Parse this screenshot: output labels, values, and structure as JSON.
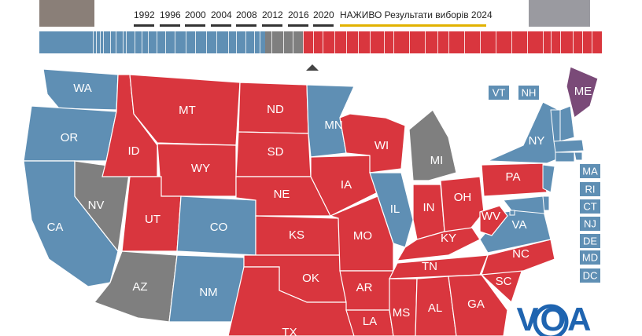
{
  "header": {
    "years": [
      "1992",
      "1996",
      "2000",
      "2004",
      "2008",
      "2012",
      "2016",
      "2020"
    ],
    "live": "НАЖИВО Результати виборів 2024"
  },
  "colors": {
    "dem": "#5f8fb4",
    "rep": "#d9363e",
    "none": "#7f7f7f",
    "split": "#7a4a78"
  },
  "states": [
    {
      "label": "WA",
      "party": "dem"
    },
    {
      "label": "OR",
      "party": "dem"
    },
    {
      "label": "CA",
      "party": "dem"
    },
    {
      "label": "NV",
      "party": "none"
    },
    {
      "label": "ID",
      "party": "rep"
    },
    {
      "label": "MT",
      "party": "rep"
    },
    {
      "label": "WY",
      "party": "rep"
    },
    {
      "label": "UT",
      "party": "rep"
    },
    {
      "label": "CO",
      "party": "dem"
    },
    {
      "label": "AZ",
      "party": "none"
    },
    {
      "label": "NM",
      "party": "dem"
    },
    {
      "label": "ND",
      "party": "rep"
    },
    {
      "label": "SD",
      "party": "rep"
    },
    {
      "label": "NE",
      "party": "rep"
    },
    {
      "label": "KS",
      "party": "rep"
    },
    {
      "label": "OK",
      "party": "rep"
    },
    {
      "label": "TX",
      "party": "rep"
    },
    {
      "label": "MN",
      "party": "dem"
    },
    {
      "label": "IA",
      "party": "rep"
    },
    {
      "label": "MO",
      "party": "rep"
    },
    {
      "label": "AR",
      "party": "rep"
    },
    {
      "label": "LA",
      "party": "rep"
    },
    {
      "label": "WI",
      "party": "rep"
    },
    {
      "label": "IL",
      "party": "dem"
    },
    {
      "label": "MI",
      "party": "none"
    },
    {
      "label": "IN",
      "party": "rep"
    },
    {
      "label": "OH",
      "party": "rep"
    },
    {
      "label": "KY",
      "party": "rep"
    },
    {
      "label": "TN",
      "party": "rep"
    },
    {
      "label": "MS",
      "party": "rep"
    },
    {
      "label": "AL",
      "party": "rep"
    },
    {
      "label": "GA",
      "party": "rep"
    },
    {
      "label": "SC",
      "party": "rep"
    },
    {
      "label": "NC",
      "party": "rep"
    },
    {
      "label": "VA",
      "party": "dem"
    },
    {
      "label": "WV",
      "party": "rep"
    },
    {
      "label": "PA",
      "party": "rep"
    },
    {
      "label": "NY",
      "party": "dem"
    },
    {
      "label": "ME",
      "party": "split"
    }
  ],
  "small_states": [
    {
      "label": "VT",
      "party": "dem"
    },
    {
      "label": "NH",
      "party": "dem"
    },
    {
      "label": "MA",
      "party": "dem"
    },
    {
      "label": "RI",
      "party": "dem"
    },
    {
      "label": "CT",
      "party": "dem"
    },
    {
      "label": "NJ",
      "party": "dem"
    },
    {
      "label": "DE",
      "party": "dem"
    },
    {
      "label": "MD",
      "party": "dem"
    },
    {
      "label": "DC",
      "party": "dem"
    }
  ],
  "logo": "VOA"
}
